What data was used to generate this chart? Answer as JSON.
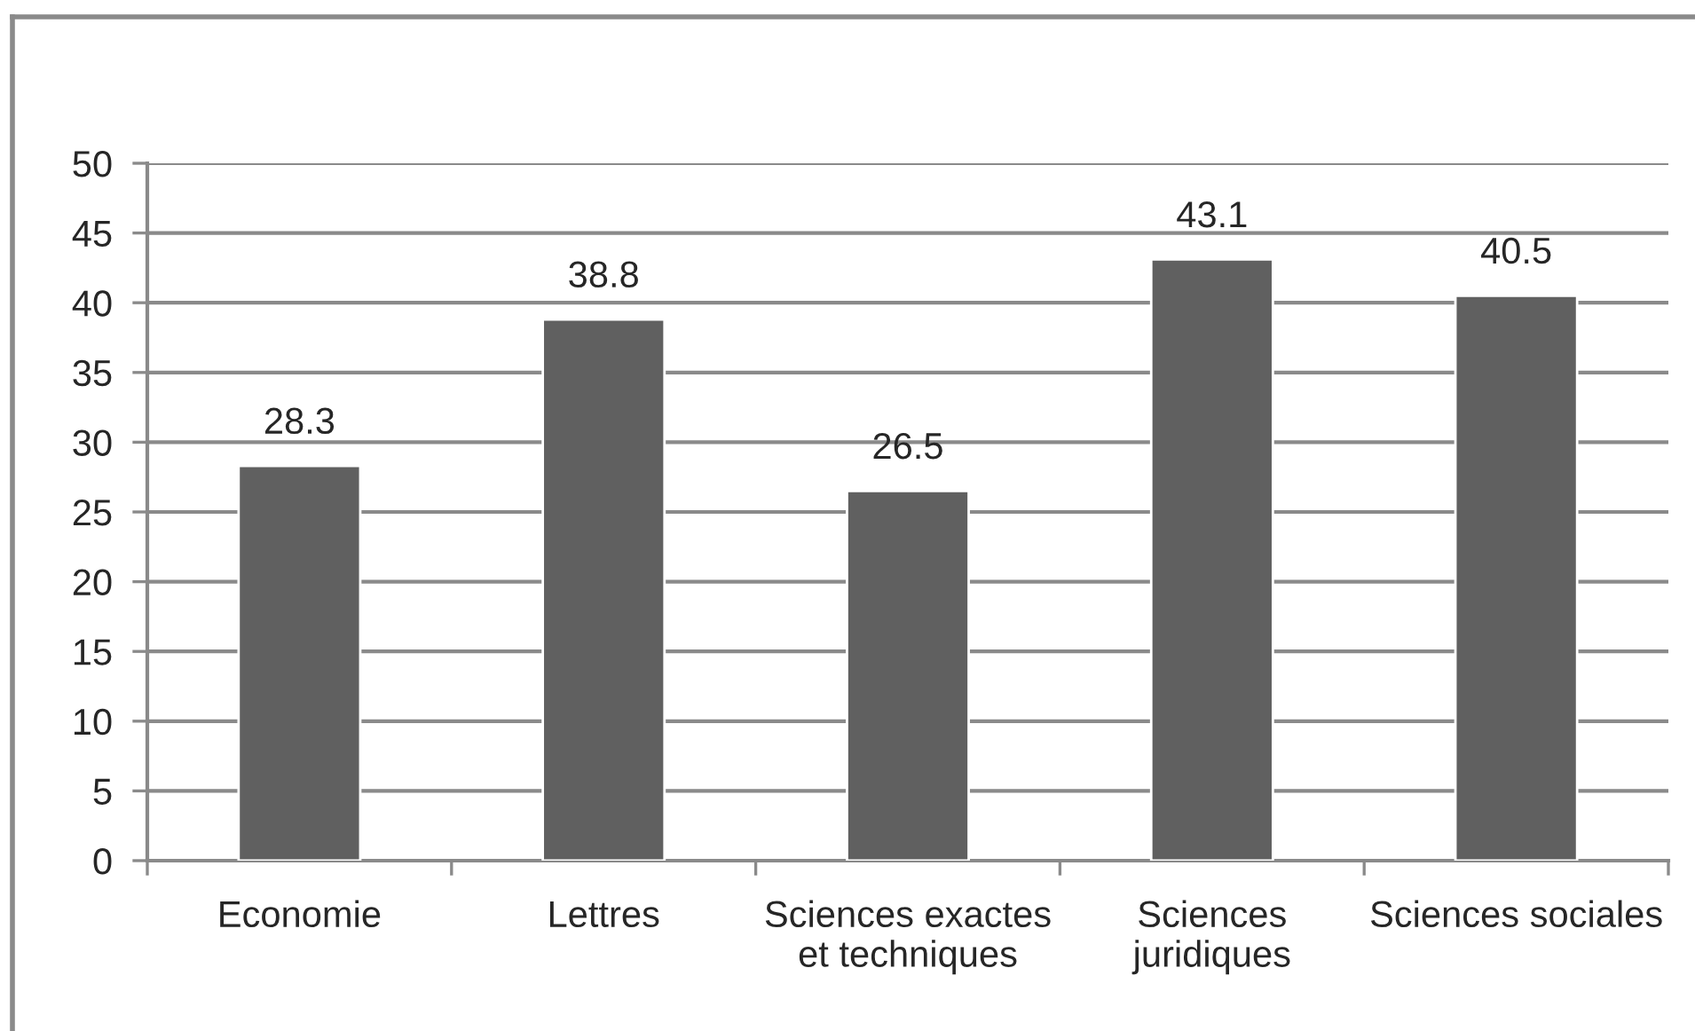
{
  "chart_data": {
    "type": "bar",
    "categories": [
      "Economie",
      "Lettres",
      "Sciences exactes\net techniques",
      "Sciences\njuridiques",
      "Sciences sociales"
    ],
    "values": [
      28.3,
      38.8,
      26.5,
      43.1,
      40.5
    ],
    "color": "#606060",
    "ylim": [
      0,
      50
    ],
    "yticks": [
      0,
      5,
      10,
      15,
      20,
      25,
      30,
      35,
      40,
      45,
      50
    ],
    "grid": "y",
    "data_labels": true
  }
}
